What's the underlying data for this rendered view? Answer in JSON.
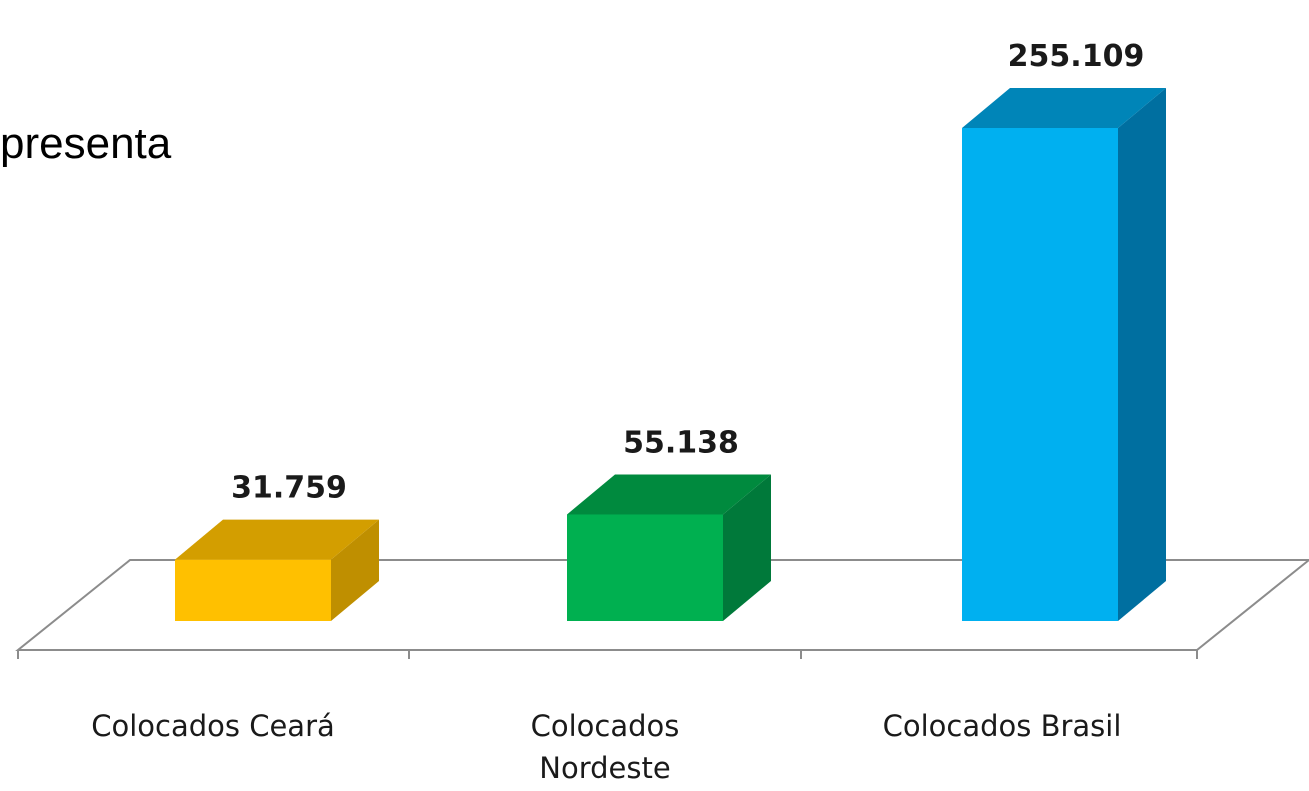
{
  "fragment_text": "presenta",
  "chart_data": {
    "type": "bar",
    "categories": [
      [
        "Colocados Ceará"
      ],
      [
        "Colocados",
        "Nordeste"
      ],
      [
        "Colocados Brasil"
      ]
    ],
    "values": [
      31759,
      55138,
      255109
    ],
    "value_labels": [
      "31.759",
      "55.138",
      "255.109"
    ],
    "title": "",
    "xlabel": "",
    "ylabel": "",
    "ylim": [
      0,
      255109
    ],
    "grid": false,
    "legend": "none",
    "three_d": true,
    "colors": [
      {
        "front": "#FFC000",
        "top": "#D39E00",
        "side": "#BF8F00"
      },
      {
        "front": "#00B050",
        "top": "#008A3E",
        "side": "#00793A"
      },
      {
        "front": "#00B0F0",
        "top": "#0085B8",
        "side": "#006FA0"
      }
    ],
    "floor_color": "#8c8c8c"
  }
}
